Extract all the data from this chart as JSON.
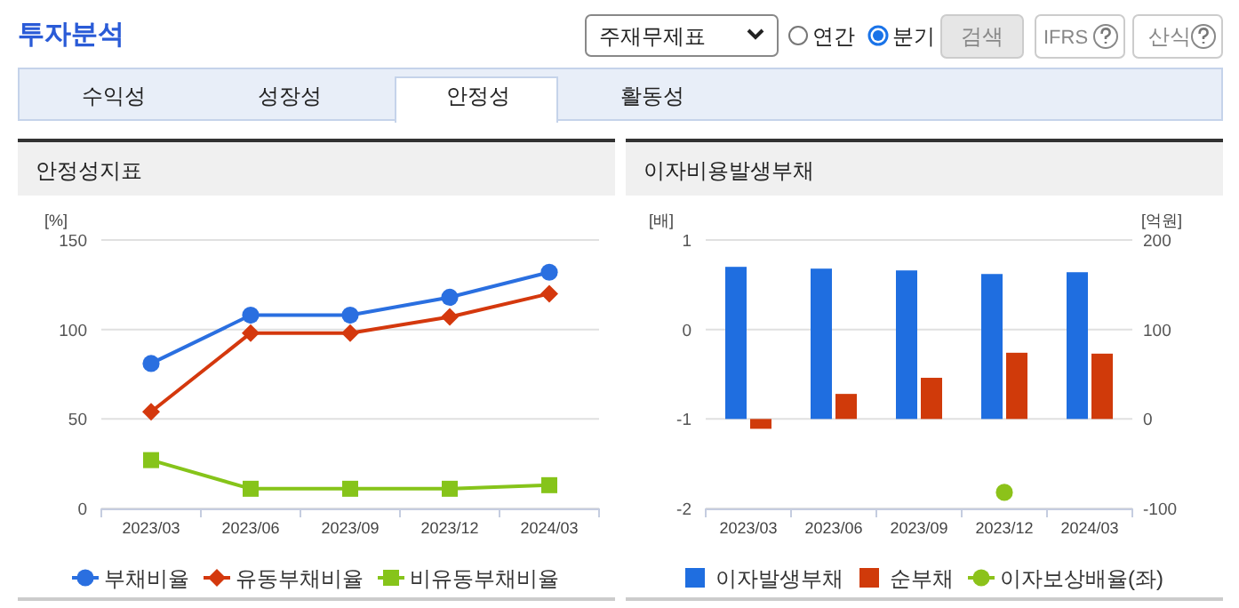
{
  "chart_data": [
    {
      "type": "other",
      "title": "투자분석",
      "annotations": [
        "주재무제표",
        "연간",
        "분기",
        "검색",
        "IFRS",
        "산식",
        "수익성",
        "성장성",
        "안정성",
        "활동성"
      ]
    },
    {
      "type": "line",
      "title": "안정성지표",
      "ylabel": "[%]",
      "categories": [
        "2023/03",
        "2023/06",
        "2023/09",
        "2023/12",
        "2024/03"
      ],
      "series": [
        {
          "name": "부채비율",
          "color": "#2a6fe0",
          "marker": "circle",
          "values": [
            81,
            108,
            108,
            118,
            132
          ]
        },
        {
          "name": "유동부채비율",
          "color": "#d4380d",
          "marker": "diamond",
          "values": [
            54,
            98,
            98,
            107,
            120
          ]
        },
        {
          "name": "비유동부채비율",
          "color": "#86c41a",
          "marker": "square",
          "values": [
            27,
            11,
            11,
            11,
            13
          ]
        }
      ],
      "ylim": [
        0,
        150
      ],
      "yticks": [
        0,
        50,
        100,
        150
      ],
      "grid": "y",
      "legend": "bottom"
    },
    {
      "type": "bar",
      "title": "이자비용발생부채",
      "ylabel": "[배]",
      "y2label": "[억원]",
      "categories": [
        "2023/03",
        "2023/06",
        "2023/09",
        "2023/12",
        "2024/03"
      ],
      "series": [
        {
          "name": "이자발생부채",
          "color": "#1f6ee0",
          "axis": "y2",
          "values": [
            170,
            168,
            166,
            162,
            164
          ]
        },
        {
          "name": "순부채",
          "color": "#d03a0a",
          "axis": "y2",
          "values": [
            -11,
            28,
            46,
            74,
            73
          ]
        },
        {
          "name": "이자보상배율(좌)",
          "color": "#8cc21a",
          "type": "line",
          "marker": "circle",
          "values": [
            null,
            null,
            null,
            -1.82,
            null
          ]
        }
      ],
      "ylim": [
        -2,
        1
      ],
      "yticks": [
        -2,
        -1,
        0,
        1
      ],
      "y2lim": [
        -100,
        200
      ],
      "y2ticks": [
        -100,
        0,
        100,
        200
      ],
      "grid": "y",
      "legend": "bottom"
    }
  ]
}
